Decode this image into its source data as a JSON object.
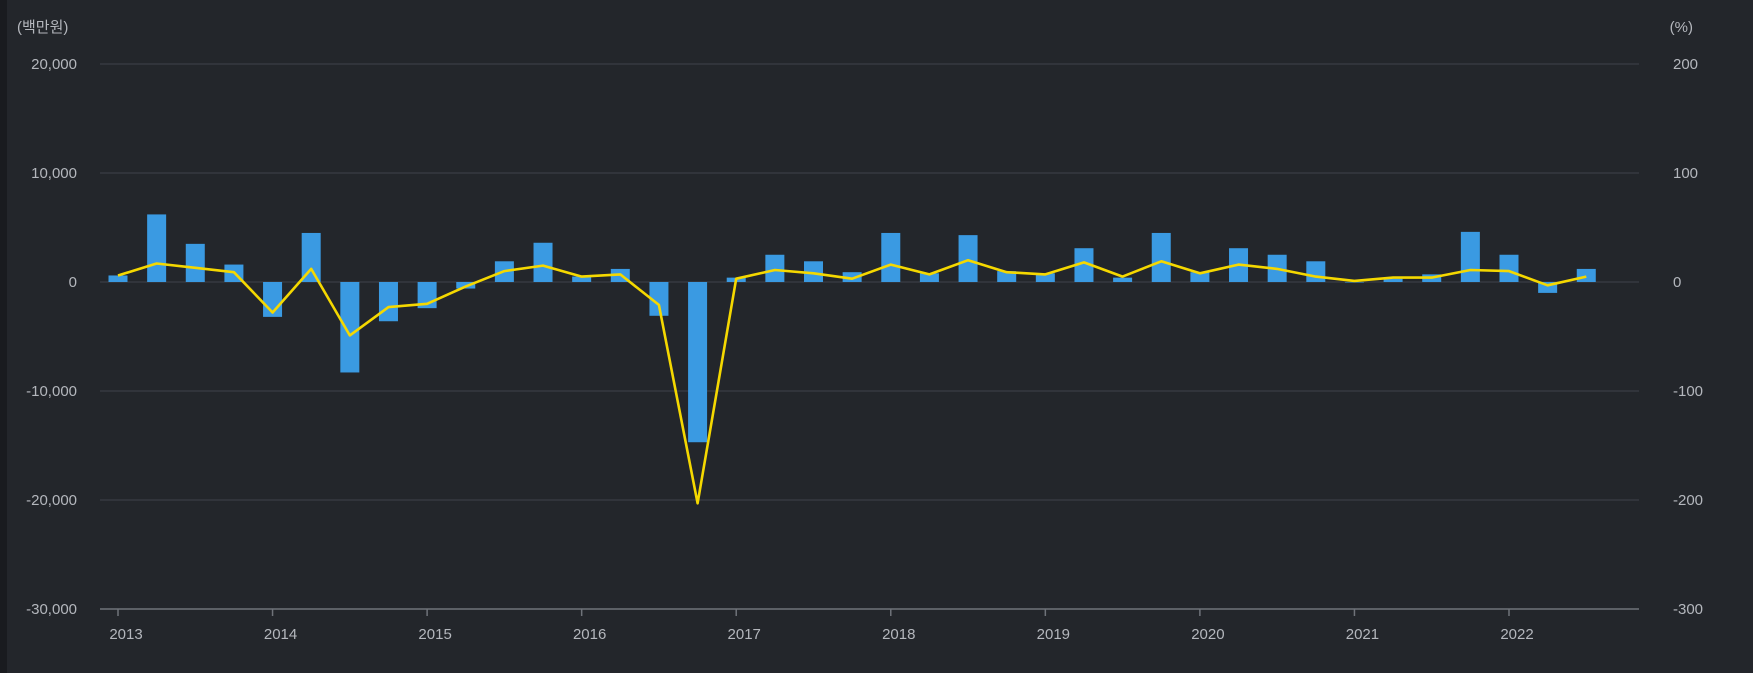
{
  "chart_data": {
    "type": "bar+line",
    "title": "",
    "left_unit": "(백만원)",
    "right_unit": "(%)",
    "y_left": {
      "min": -30000,
      "max": 20000,
      "ticks": [
        20000,
        10000,
        0,
        -10000,
        -20000,
        -30000
      ],
      "tick_labels": [
        "20,000",
        "10,000",
        "0",
        "-10,000",
        "-20,000",
        "-30,000"
      ]
    },
    "y_right": {
      "min": -300,
      "max": 200,
      "ticks": [
        200,
        100,
        0,
        -100,
        -200,
        -300
      ],
      "tick_labels": [
        "200",
        "100",
        "0",
        "-100",
        "-200",
        "-300"
      ]
    },
    "x_range": [
      2013.0,
      2022.83
    ],
    "x_ticks": [
      2013,
      2014,
      2015,
      2016,
      2017,
      2018,
      2019,
      2020,
      2021,
      2022
    ],
    "x_tick_labels": [
      "2013",
      "2014",
      "2015",
      "2016",
      "2017",
      "2018",
      "2019",
      "2020",
      "2021",
      "2022"
    ],
    "grid": true,
    "colors": {
      "bar": "#3a9ae2",
      "line": "#f5d800",
      "grid": "#3a3e45",
      "axis": "#6f737a"
    },
    "series": [
      {
        "type": "bar",
        "axis": "left",
        "x": [
          2013.0,
          2013.25,
          2013.5,
          2013.75,
          2014.0,
          2014.25,
          2014.5,
          2014.75,
          2015.0,
          2015.25,
          2015.5,
          2015.75,
          2016.0,
          2016.25,
          2016.5,
          2016.75,
          2017.0,
          2017.25,
          2017.5,
          2017.75,
          2018.0,
          2018.25,
          2018.5,
          2018.75,
          2019.0,
          2019.25,
          2019.5,
          2019.75,
          2020.0,
          2020.25,
          2020.5,
          2020.75,
          2021.0,
          2021.25,
          2021.5,
          2021.75,
          2022.0,
          2022.25,
          2022.5
        ],
        "values": [
          600,
          6200,
          3500,
          1600,
          -3200,
          4500,
          -8300,
          -3600,
          -2400,
          -600,
          1900,
          3600,
          500,
          1200,
          -3100,
          -14700,
          400,
          2500,
          1900,
          900,
          4500,
          800,
          4300,
          1000,
          800,
          3100,
          400,
          4500,
          900,
          3100,
          2500,
          1900,
          0,
          300,
          700,
          4600,
          2500,
          -1000,
          1200
        ]
      },
      {
        "type": "line",
        "axis": "right",
        "x": [
          2013.0,
          2013.25,
          2013.5,
          2013.75,
          2014.0,
          2014.25,
          2014.5,
          2014.75,
          2015.0,
          2015.25,
          2015.5,
          2015.75,
          2016.0,
          2016.25,
          2016.5,
          2016.75,
          2017.0,
          2017.25,
          2017.5,
          2017.75,
          2018.0,
          2018.25,
          2018.5,
          2018.75,
          2019.0,
          2019.25,
          2019.5,
          2019.75,
          2020.0,
          2020.25,
          2020.5,
          2020.75,
          2021.0,
          2021.25,
          2021.5,
          2021.75,
          2022.0,
          2022.25,
          2022.5
        ],
        "values": [
          6,
          17,
          13,
          9,
          -28,
          12,
          -49,
          -23,
          -20,
          -4,
          10,
          15,
          5,
          7,
          -21,
          -203,
          3,
          11,
          8,
          3,
          16,
          7,
          20,
          9,
          7,
          18,
          5,
          19,
          8,
          16,
          12,
          5,
          1,
          4,
          4,
          11,
          10,
          -3,
          5
        ]
      }
    ]
  }
}
